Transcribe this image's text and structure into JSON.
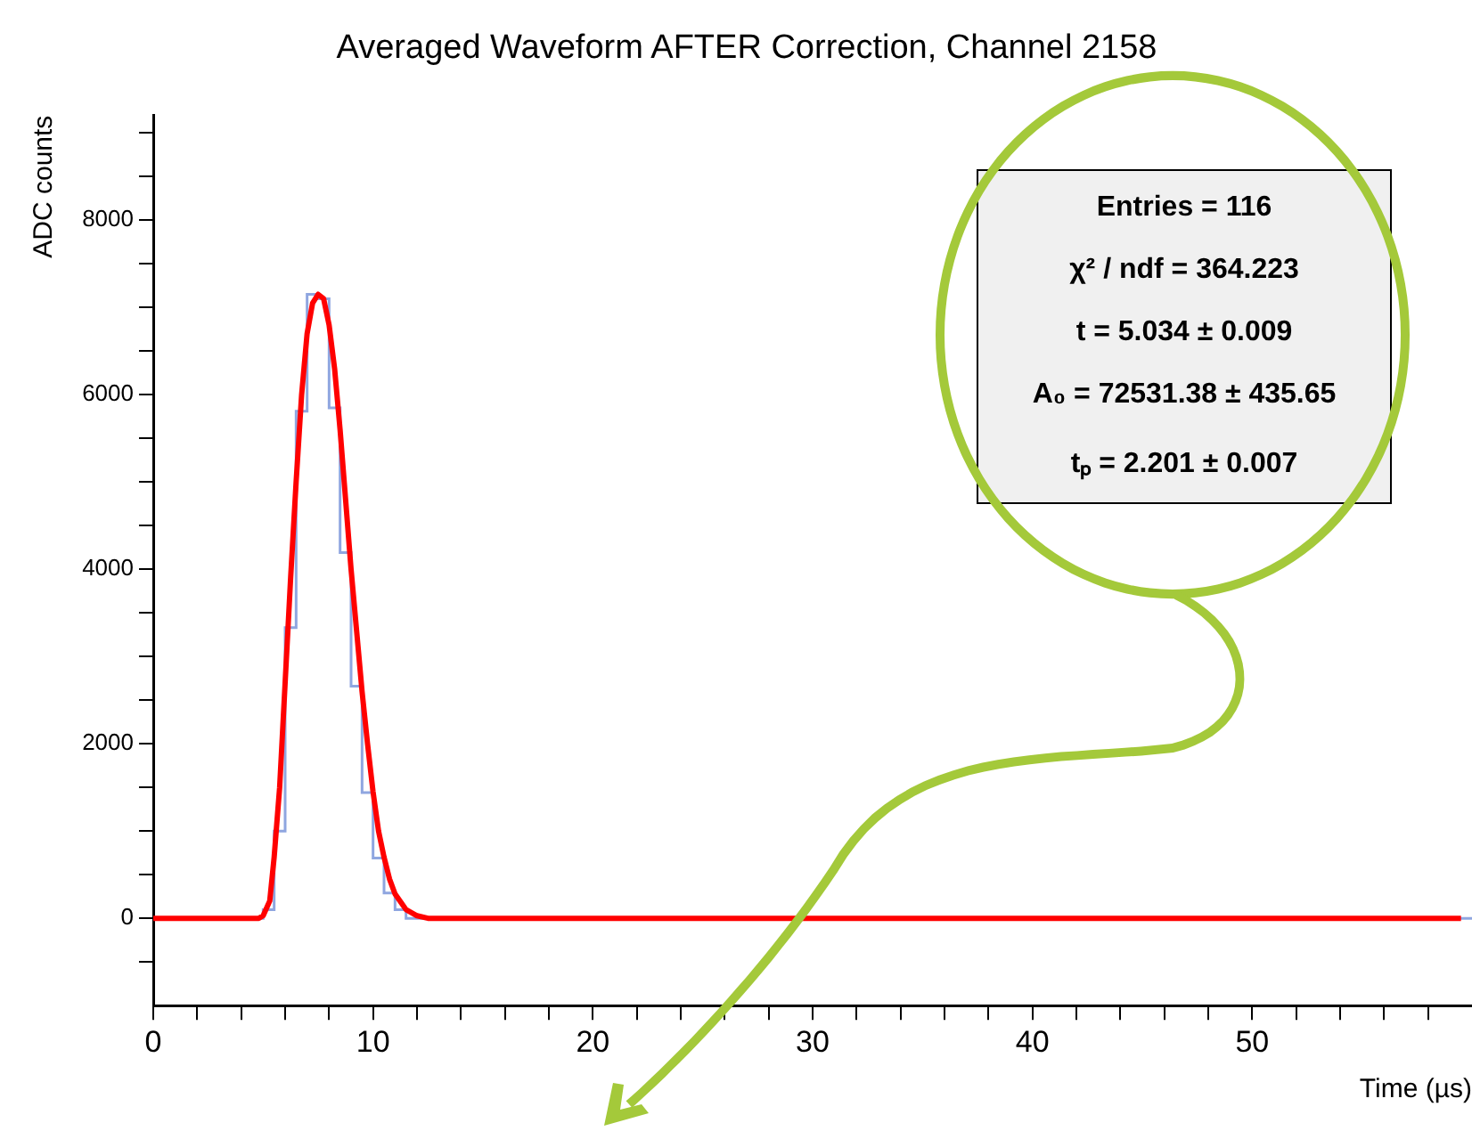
{
  "chart_data": {
    "type": "histogram",
    "title": "Averaged Waveform AFTER Correction, Channel 2158",
    "xlabel": "Time (µs)",
    "ylabel": "ADC counts",
    "xlim": [
      0,
      60
    ],
    "ylim": [
      -1000,
      9200
    ],
    "xticks": [
      0,
      {
        "value": 2,
        "label": null
      },
      {
        "value": 4,
        "label": null
      },
      {
        "value": 6,
        "label": null
      },
      {
        "value": 8,
        "label": null
      },
      10,
      {
        "value": 12,
        "label": null
      },
      {
        "value": 14,
        "label": null
      },
      {
        "value": 16,
        "label": null
      },
      {
        "value": 18,
        "label": null
      },
      20,
      {
        "value": 22,
        "label": null
      },
      {
        "value": 24,
        "label": null
      },
      {
        "value": 26,
        "label": null
      },
      {
        "value": 28,
        "label": null
      },
      30,
      {
        "value": 32,
        "label": null
      },
      {
        "value": 34,
        "label": null
      },
      {
        "value": 36,
        "label": null
      },
      {
        "value": 38,
        "label": null
      },
      40,
      {
        "value": 42,
        "label": null
      },
      {
        "value": 44,
        "label": null
      },
      {
        "value": 46,
        "label": null
      },
      {
        "value": 48,
        "label": null
      },
      50,
      {
        "value": 52,
        "label": null
      },
      {
        "value": 54,
        "label": null
      },
      {
        "value": 56,
        "label": null
      },
      {
        "value": 58,
        "label": null
      }
    ],
    "yticks": [
      {
        "value": -500,
        "label": null
      },
      0,
      {
        "value": 500,
        "label": null
      },
      {
        "value": 1000,
        "label": null
      },
      {
        "value": 1500,
        "label": null
      },
      2000,
      {
        "value": 2500,
        "label": null
      },
      {
        "value": 3000,
        "label": null
      },
      {
        "value": 3500,
        "label": null
      },
      4000,
      {
        "value": 4500,
        "label": null
      },
      {
        "value": 5000,
        "label": null
      },
      {
        "value": 5500,
        "label": null
      },
      6000,
      {
        "value": 6500,
        "label": null
      },
      {
        "value": 7000,
        "label": null
      },
      {
        "value": 7500,
        "label": null
      },
      8000,
      {
        "value": 8500,
        "label": null
      },
      {
        "value": 9000,
        "label": null
      }
    ],
    "series": [
      {
        "type": "histogram",
        "color": "#8fa6e0",
        "bins": [
          0,
          0.5,
          1,
          1.5,
          2,
          2.5,
          3,
          3.5,
          4,
          4.5,
          5,
          5.5,
          6,
          6.5,
          7,
          7.5,
          8,
          8.5,
          9,
          9.5,
          10,
          10.5,
          11,
          11.5,
          12,
          12.5,
          13,
          13.5,
          14,
          14.5,
          15,
          15.5,
          16,
          16.5,
          17,
          17.5,
          18,
          18.5,
          19,
          19.5,
          20,
          20.5,
          21,
          21.5,
          22,
          22.5,
          23,
          23.5,
          24,
          24.5,
          25,
          25.5,
          26,
          26.5,
          27,
          27.5,
          28,
          28.5,
          29,
          29.5,
          30,
          30.5,
          31,
          31.5,
          32,
          32.5,
          33,
          33.5,
          34,
          34.5,
          35,
          35.5,
          36,
          36.5,
          37,
          37.5,
          38,
          38.5,
          39,
          39.5,
          40,
          40.5,
          41,
          41.5,
          42,
          42.5,
          43,
          43.5,
          44,
          44.5,
          45,
          45.5,
          46,
          46.5,
          47,
          47.5,
          48,
          48.5,
          49,
          49.5,
          50,
          50.5,
          51,
          51.5,
          52,
          52.5,
          53,
          53.5,
          54,
          54.5,
          55,
          55.5,
          56,
          56.5,
          57,
          57.5,
          58,
          58.5,
          59,
          59.5,
          60
        ],
        "values": [
          0,
          0,
          0,
          0,
          0,
          0,
          0,
          0,
          0,
          0,
          100,
          1000,
          3330,
          5810,
          7150,
          7100,
          5850,
          4190,
          2660,
          1440,
          690,
          290,
          100,
          0,
          0,
          0,
          0,
          0,
          0,
          0,
          0,
          0,
          0,
          0,
          0,
          0,
          0,
          0,
          0,
          0,
          0,
          0,
          0,
          0,
          0,
          0,
          0,
          0,
          0,
          0,
          0,
          0,
          0,
          0,
          0,
          0,
          0,
          0,
          0,
          0,
          0,
          0,
          0,
          0,
          0,
          0,
          0,
          0,
          0,
          0,
          0,
          0,
          0,
          0,
          0,
          0,
          0,
          0,
          0,
          0,
          0,
          0,
          0,
          0,
          0,
          0,
          0,
          0,
          0,
          0,
          0,
          0,
          0,
          0,
          0,
          0,
          0,
          0,
          0,
          0,
          0,
          0,
          0,
          0,
          0,
          0,
          0,
          0,
          0,
          0,
          0,
          0,
          0,
          0,
          0,
          0,
          0,
          0,
          0,
          0
        ]
      },
      {
        "type": "line",
        "color": "#ff0000",
        "x": [
          0,
          4.8,
          5.0,
          5.3,
          5.5,
          5.75,
          6.0,
          6.25,
          6.5,
          6.75,
          7.0,
          7.25,
          7.5,
          7.75,
          8.0,
          8.25,
          8.5,
          8.75,
          9.0,
          9.25,
          9.5,
          9.75,
          10.0,
          10.25,
          10.5,
          10.75,
          11.0,
          11.5,
          12.0,
          12.5,
          59.5
        ],
        "values": [
          0,
          0,
          30,
          200,
          700,
          1500,
          2700,
          3900,
          5000,
          6000,
          6700,
          7050,
          7150,
          7100,
          6800,
          6300,
          5600,
          4800,
          4000,
          3300,
          2600,
          2000,
          1450,
          1000,
          700,
          450,
          280,
          100,
          30,
          0,
          0
        ]
      }
    ],
    "annotations": [
      "Entries = 116",
      "χ² / ndf = 364.223",
      "t  = 5.034 ± 0.009",
      "A₀  = 72531.38 ± 435.65",
      "tₚ = 2.201 ± 0.007"
    ],
    "legend": false,
    "grid": false
  }
}
